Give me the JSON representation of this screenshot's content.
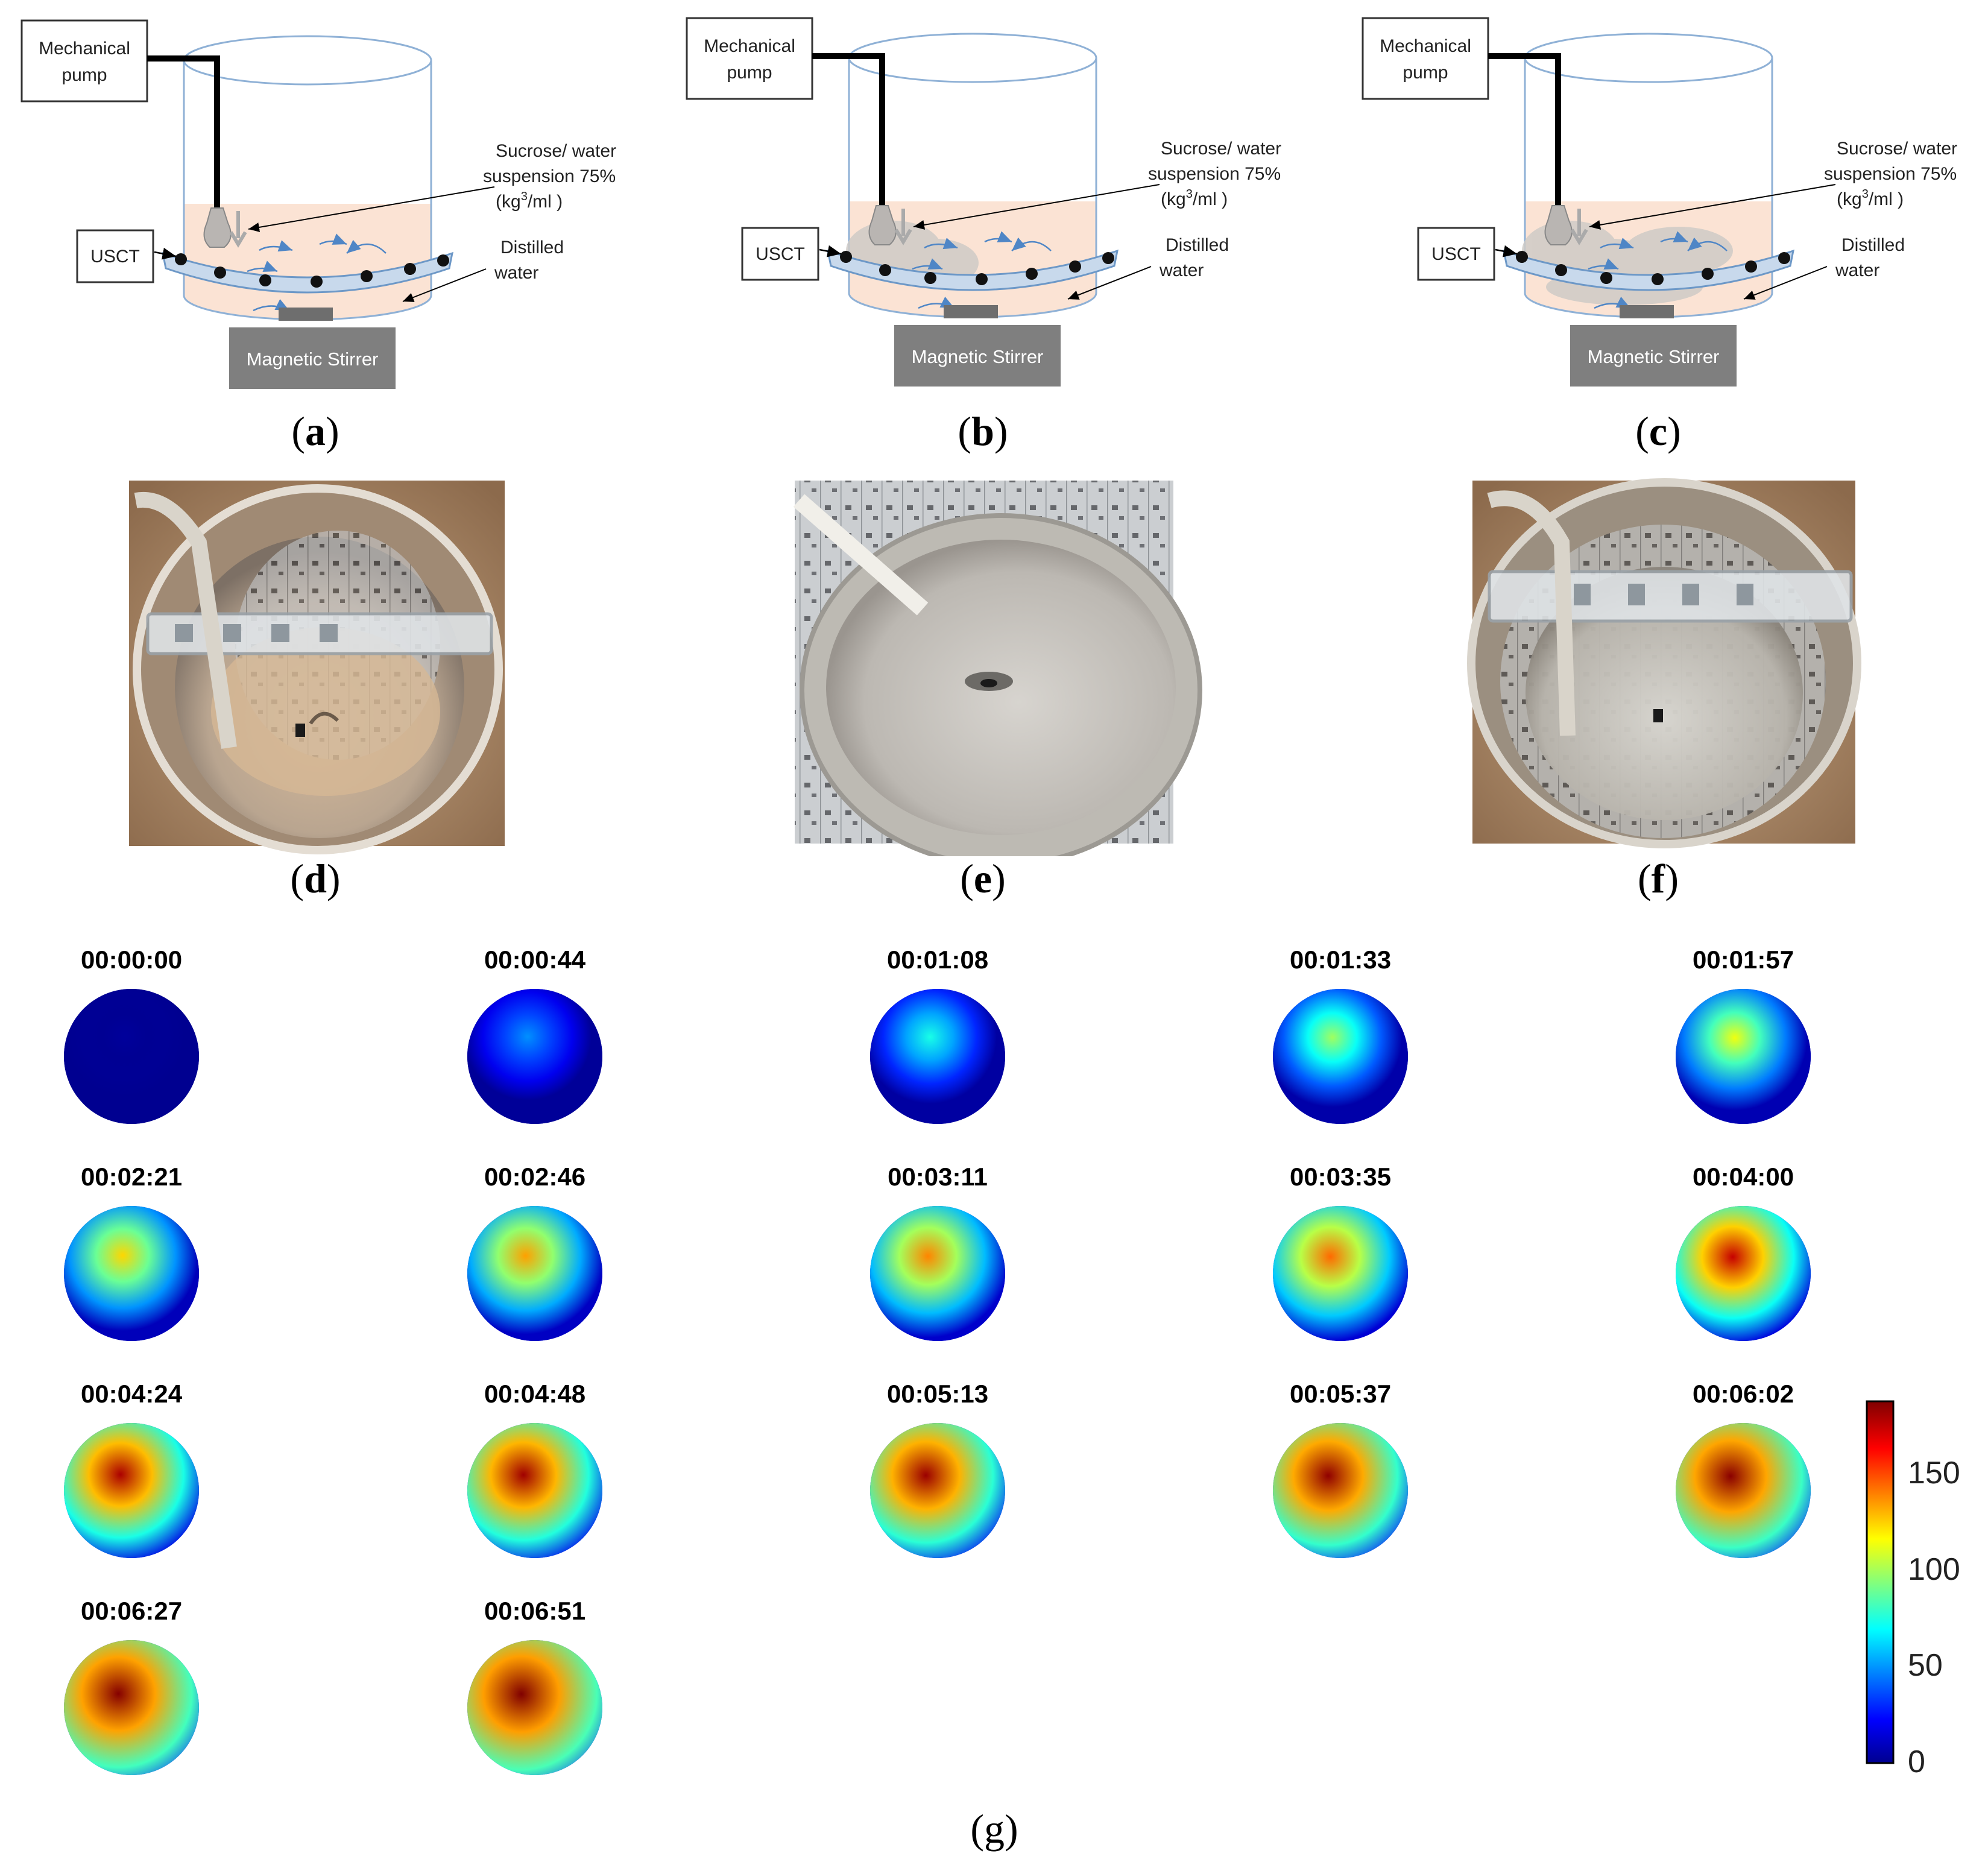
{
  "diagrams": [
    {
      "panel": "a",
      "pump": [
        "Mechanical",
        "pump"
      ],
      "usct": "USCT",
      "suspension": [
        "Sucrose/ water",
        "suspension 75%",
        "(kg",
        "3",
        "/ml )"
      ],
      "water": [
        "Distilled",
        "water"
      ],
      "stirrer": "Magnetic Stirrer",
      "cloud": 0
    },
    {
      "panel": "b",
      "pump": [
        "Mechanical",
        "pump"
      ],
      "usct": "USCT",
      "suspension": [
        "Sucrose/ water",
        "suspension 75%",
        "(kg",
        "3",
        "/ml )"
      ],
      "water": [
        "Distilled",
        "water"
      ],
      "stirrer": "Magnetic Stirrer",
      "cloud": 1
    },
    {
      "panel": "c",
      "pump": [
        "Mechanical",
        "pump"
      ],
      "usct": "USCT",
      "suspension": [
        "Sucrose/ water",
        "suspension 75%",
        "(kg",
        "3",
        "/ml )"
      ],
      "water": [
        "Distilled",
        "water"
      ],
      "stirrer": "Magnetic Stirrer",
      "cloud": 2
    }
  ],
  "panel_labels": [
    "(a)",
    "(b)",
    "(c)",
    "(d)",
    "(e)",
    "(f)",
    "(g)"
  ],
  "photos": [
    {
      "panel": "d",
      "state": "clear water"
    },
    {
      "panel": "e",
      "state": "cloudy suspension"
    },
    {
      "panel": "f",
      "state": "milky suspension"
    }
  ],
  "chart_data": {
    "type": "heatmap",
    "title": "",
    "frames": [
      {
        "time": "00:00:00",
        "peak": 5
      },
      {
        "time": "00:00:44",
        "peak": 50
      },
      {
        "time": "00:01:08",
        "peak": 75
      },
      {
        "time": "00:01:33",
        "peak": 100
      },
      {
        "time": "00:01:57",
        "peak": 115
      },
      {
        "time": "00:02:21",
        "peak": 125
      },
      {
        "time": "00:02:46",
        "peak": 135
      },
      {
        "time": "00:03:11",
        "peak": 140
      },
      {
        "time": "00:03:35",
        "peak": 145
      },
      {
        "time": "00:04:00",
        "peak": 175
      },
      {
        "time": "00:04:24",
        "peak": 180
      },
      {
        "time": "00:04:48",
        "peak": 182
      },
      {
        "time": "00:05:13",
        "peak": 183
      },
      {
        "time": "00:05:37",
        "peak": 185
      },
      {
        "time": "00:06:02",
        "peak": 186
      },
      {
        "time": "00:06:27",
        "peak": 187
      },
      {
        "time": "00:06:51",
        "peak": 188
      }
    ],
    "colorbar": {
      "range": [
        0,
        188
      ],
      "ticks": [
        "0",
        "50",
        "100",
        "150"
      ],
      "colormap": "jet"
    }
  }
}
